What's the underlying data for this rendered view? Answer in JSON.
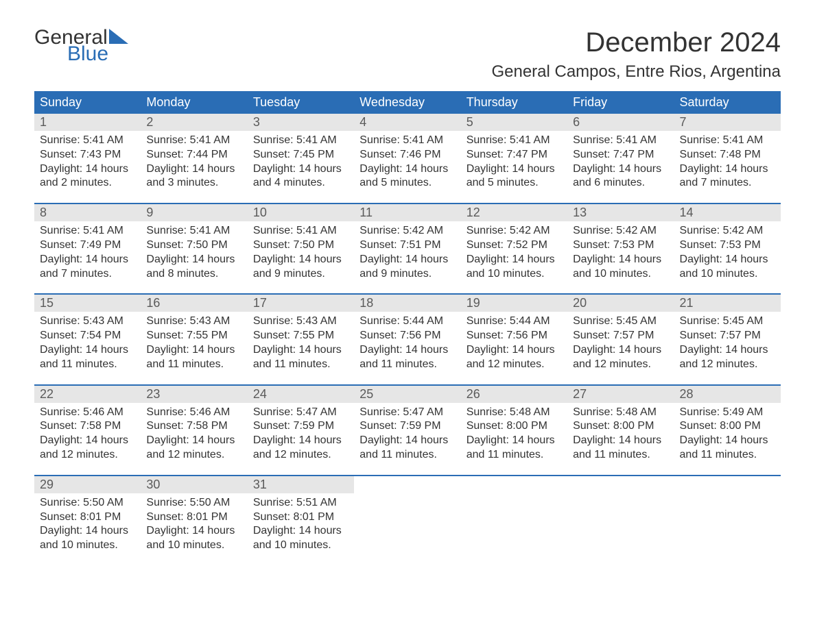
{
  "logo": {
    "word1": "General",
    "word2": "Blue"
  },
  "title": "December 2024",
  "location": "General Campos, Entre Rios, Argentina",
  "colors": {
    "brand_blue": "#2a6db5",
    "header_bg": "#2a6db5",
    "header_text": "#ffffff",
    "daynum_bg": "#e6e6e6",
    "daynum_text": "#5a5a5a",
    "body_text": "#333333",
    "page_bg": "#ffffff"
  },
  "typography": {
    "title_fontsize": 40,
    "location_fontsize": 24,
    "dayhead_fontsize": 18,
    "daynum_fontsize": 18,
    "cell_fontsize": 16,
    "logo_fontsize": 30
  },
  "day_headers": [
    "Sunday",
    "Monday",
    "Tuesday",
    "Wednesday",
    "Thursday",
    "Friday",
    "Saturday"
  ],
  "weeks": [
    [
      {
        "num": "1",
        "sunrise": "Sunrise: 5:41 AM",
        "sunset": "Sunset: 7:43 PM",
        "day1": "Daylight: 14 hours",
        "day2": "and 2 minutes."
      },
      {
        "num": "2",
        "sunrise": "Sunrise: 5:41 AM",
        "sunset": "Sunset: 7:44 PM",
        "day1": "Daylight: 14 hours",
        "day2": "and 3 minutes."
      },
      {
        "num": "3",
        "sunrise": "Sunrise: 5:41 AM",
        "sunset": "Sunset: 7:45 PM",
        "day1": "Daylight: 14 hours",
        "day2": "and 4 minutes."
      },
      {
        "num": "4",
        "sunrise": "Sunrise: 5:41 AM",
        "sunset": "Sunset: 7:46 PM",
        "day1": "Daylight: 14 hours",
        "day2": "and 5 minutes."
      },
      {
        "num": "5",
        "sunrise": "Sunrise: 5:41 AM",
        "sunset": "Sunset: 7:47 PM",
        "day1": "Daylight: 14 hours",
        "day2": "and 5 minutes."
      },
      {
        "num": "6",
        "sunrise": "Sunrise: 5:41 AM",
        "sunset": "Sunset: 7:47 PM",
        "day1": "Daylight: 14 hours",
        "day2": "and 6 minutes."
      },
      {
        "num": "7",
        "sunrise": "Sunrise: 5:41 AM",
        "sunset": "Sunset: 7:48 PM",
        "day1": "Daylight: 14 hours",
        "day2": "and 7 minutes."
      }
    ],
    [
      {
        "num": "8",
        "sunrise": "Sunrise: 5:41 AM",
        "sunset": "Sunset: 7:49 PM",
        "day1": "Daylight: 14 hours",
        "day2": "and 7 minutes."
      },
      {
        "num": "9",
        "sunrise": "Sunrise: 5:41 AM",
        "sunset": "Sunset: 7:50 PM",
        "day1": "Daylight: 14 hours",
        "day2": "and 8 minutes."
      },
      {
        "num": "10",
        "sunrise": "Sunrise: 5:41 AM",
        "sunset": "Sunset: 7:50 PM",
        "day1": "Daylight: 14 hours",
        "day2": "and 9 minutes."
      },
      {
        "num": "11",
        "sunrise": "Sunrise: 5:42 AM",
        "sunset": "Sunset: 7:51 PM",
        "day1": "Daylight: 14 hours",
        "day2": "and 9 minutes."
      },
      {
        "num": "12",
        "sunrise": "Sunrise: 5:42 AM",
        "sunset": "Sunset: 7:52 PM",
        "day1": "Daylight: 14 hours",
        "day2": "and 10 minutes."
      },
      {
        "num": "13",
        "sunrise": "Sunrise: 5:42 AM",
        "sunset": "Sunset: 7:53 PM",
        "day1": "Daylight: 14 hours",
        "day2": "and 10 minutes."
      },
      {
        "num": "14",
        "sunrise": "Sunrise: 5:42 AM",
        "sunset": "Sunset: 7:53 PM",
        "day1": "Daylight: 14 hours",
        "day2": "and 10 minutes."
      }
    ],
    [
      {
        "num": "15",
        "sunrise": "Sunrise: 5:43 AM",
        "sunset": "Sunset: 7:54 PM",
        "day1": "Daylight: 14 hours",
        "day2": "and 11 minutes."
      },
      {
        "num": "16",
        "sunrise": "Sunrise: 5:43 AM",
        "sunset": "Sunset: 7:55 PM",
        "day1": "Daylight: 14 hours",
        "day2": "and 11 minutes."
      },
      {
        "num": "17",
        "sunrise": "Sunrise: 5:43 AM",
        "sunset": "Sunset: 7:55 PM",
        "day1": "Daylight: 14 hours",
        "day2": "and 11 minutes."
      },
      {
        "num": "18",
        "sunrise": "Sunrise: 5:44 AM",
        "sunset": "Sunset: 7:56 PM",
        "day1": "Daylight: 14 hours",
        "day2": "and 11 minutes."
      },
      {
        "num": "19",
        "sunrise": "Sunrise: 5:44 AM",
        "sunset": "Sunset: 7:56 PM",
        "day1": "Daylight: 14 hours",
        "day2": "and 12 minutes."
      },
      {
        "num": "20",
        "sunrise": "Sunrise: 5:45 AM",
        "sunset": "Sunset: 7:57 PM",
        "day1": "Daylight: 14 hours",
        "day2": "and 12 minutes."
      },
      {
        "num": "21",
        "sunrise": "Sunrise: 5:45 AM",
        "sunset": "Sunset: 7:57 PM",
        "day1": "Daylight: 14 hours",
        "day2": "and 12 minutes."
      }
    ],
    [
      {
        "num": "22",
        "sunrise": "Sunrise: 5:46 AM",
        "sunset": "Sunset: 7:58 PM",
        "day1": "Daylight: 14 hours",
        "day2": "and 12 minutes."
      },
      {
        "num": "23",
        "sunrise": "Sunrise: 5:46 AM",
        "sunset": "Sunset: 7:58 PM",
        "day1": "Daylight: 14 hours",
        "day2": "and 12 minutes."
      },
      {
        "num": "24",
        "sunrise": "Sunrise: 5:47 AM",
        "sunset": "Sunset: 7:59 PM",
        "day1": "Daylight: 14 hours",
        "day2": "and 12 minutes."
      },
      {
        "num": "25",
        "sunrise": "Sunrise: 5:47 AM",
        "sunset": "Sunset: 7:59 PM",
        "day1": "Daylight: 14 hours",
        "day2": "and 11 minutes."
      },
      {
        "num": "26",
        "sunrise": "Sunrise: 5:48 AM",
        "sunset": "Sunset: 8:00 PM",
        "day1": "Daylight: 14 hours",
        "day2": "and 11 minutes."
      },
      {
        "num": "27",
        "sunrise": "Sunrise: 5:48 AM",
        "sunset": "Sunset: 8:00 PM",
        "day1": "Daylight: 14 hours",
        "day2": "and 11 minutes."
      },
      {
        "num": "28",
        "sunrise": "Sunrise: 5:49 AM",
        "sunset": "Sunset: 8:00 PM",
        "day1": "Daylight: 14 hours",
        "day2": "and 11 minutes."
      }
    ],
    [
      {
        "num": "29",
        "sunrise": "Sunrise: 5:50 AM",
        "sunset": "Sunset: 8:01 PM",
        "day1": "Daylight: 14 hours",
        "day2": "and 10 minutes."
      },
      {
        "num": "30",
        "sunrise": "Sunrise: 5:50 AM",
        "sunset": "Sunset: 8:01 PM",
        "day1": "Daylight: 14 hours",
        "day2": "and 10 minutes."
      },
      {
        "num": "31",
        "sunrise": "Sunrise: 5:51 AM",
        "sunset": "Sunset: 8:01 PM",
        "day1": "Daylight: 14 hours",
        "day2": "and 10 minutes."
      },
      null,
      null,
      null,
      null
    ]
  ]
}
